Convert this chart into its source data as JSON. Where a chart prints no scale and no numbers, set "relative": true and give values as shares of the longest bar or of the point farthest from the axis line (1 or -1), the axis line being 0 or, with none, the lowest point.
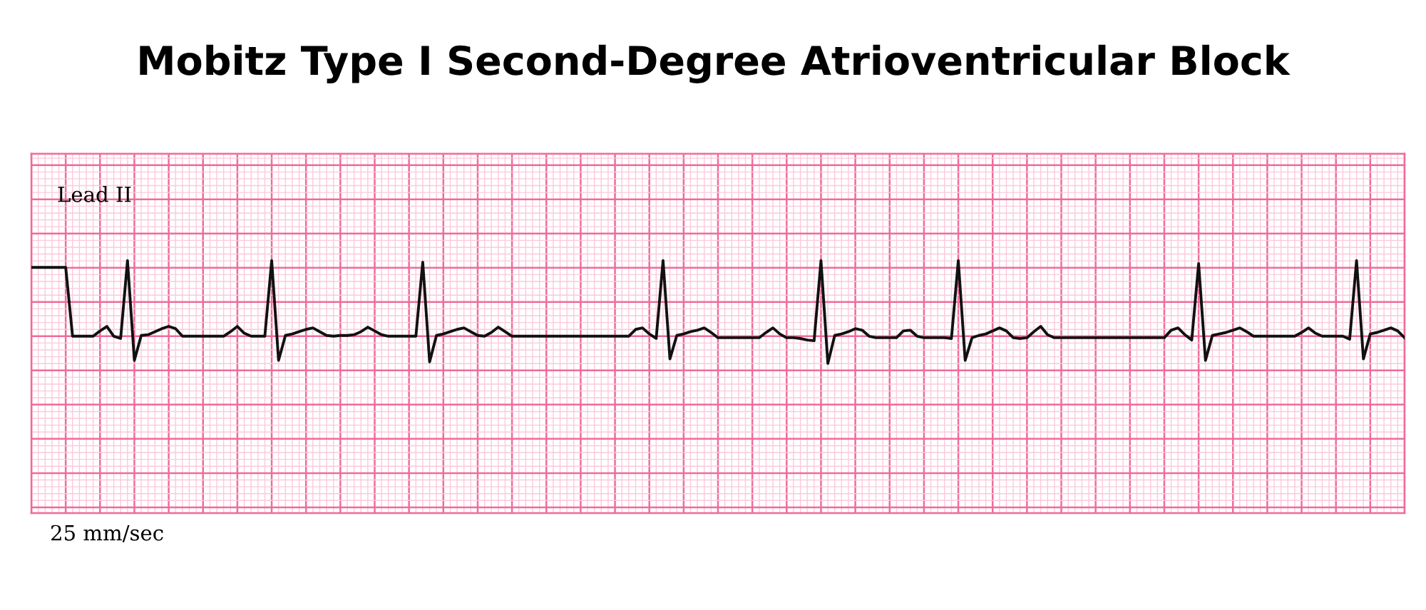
{
  "chart_data": {
    "type": "line",
    "title": "Mobitz Type I Second-Degree Atrioventricular Block",
    "relative": true,
    "grid": true,
    "tick_labels": false,
    "annotations": [
      "Lead II",
      "25 mm/sec"
    ],
    "categories": [
      null,
      null,
      null,
      null,
      null,
      null,
      null,
      null,
      null,
      null,
      null,
      null,
      null,
      null,
      null,
      null,
      null,
      null,
      null,
      null,
      null,
      null,
      null,
      null,
      null,
      null,
      null,
      null,
      null,
      null,
      null,
      null,
      null,
      null,
      null,
      null,
      null,
      null,
      null,
      null,
      null,
      null,
      null,
      null,
      null,
      null,
      null,
      null,
      null,
      null,
      null,
      null,
      null,
      null,
      null,
      null,
      null,
      null,
      null,
      null,
      null,
      null,
      null,
      null,
      null,
      null,
      null,
      null,
      null,
      null,
      null,
      null,
      null,
      null,
      null,
      null,
      null,
      null,
      null,
      null,
      null,
      null,
      null,
      null,
      null,
      null,
      null,
      null,
      null,
      null,
      null,
      null,
      null,
      null,
      null,
      null,
      null,
      null,
      null,
      null,
      null,
      null,
      null,
      null,
      null,
      null,
      null,
      null,
      null,
      null,
      null,
      null,
      null,
      null,
      null,
      null,
      null,
      null,
      null,
      null,
      null,
      null,
      null,
      null,
      null,
      null,
      null,
      null,
      null,
      null,
      null,
      null,
      null,
      null,
      null,
      null,
      null,
      null,
      null,
      null,
      null,
      null,
      null,
      null,
      null,
      null,
      null,
      null,
      null,
      null,
      null,
      null,
      null,
      null,
      null,
      null,
      null,
      null,
      null,
      null,
      null,
      null,
      null,
      null,
      null,
      null,
      null,
      null,
      null,
      null,
      null,
      null,
      null,
      null,
      null,
      null,
      null,
      null,
      null,
      null,
      null,
      null,
      null,
      null,
      null,
      null,
      null,
      null,
      null,
      null,
      null,
      null,
      null,
      null,
      null,
      null,
      null,
      null,
      null,
      null,
      null
    ],
    "series": [
      {
        "color": "#111111",
        "values": [
          0.91,
          0.91,
          0.91,
          0.91,
          0.91,
          0.91,
          0,
          0,
          0,
          0,
          0.07,
          0.13,
          0,
          -0.03,
          1,
          -0.32,
          0.01,
          0.02,
          0.06,
          0.1,
          0.13,
          0.1,
          0,
          0,
          0,
          0,
          0,
          0,
          0,
          0.06,
          0.13,
          0.04,
          0,
          0,
          0,
          1,
          -0.32,
          0.01,
          0.03,
          0.06,
          0.09,
          0.11,
          0.06,
          0.01,
          0,
          0.01,
          0.01,
          0.02,
          0.06,
          0.12,
          0.07,
          0.02,
          0,
          0,
          0,
          0,
          0,
          0.98,
          -0.34,
          0.01,
          0.03,
          0.06,
          0.09,
          0.11,
          0.06,
          0.01,
          0,
          0.05,
          0.12,
          0.06,
          0,
          0,
          0,
          0,
          0,
          0,
          0,
          0,
          0,
          0,
          0,
          0,
          0,
          0,
          0,
          0,
          0,
          0,
          0.09,
          0.11,
          0.03,
          -0.03,
          1,
          -0.3,
          0.01,
          0.03,
          0.06,
          0.08,
          0.11,
          0.05,
          -0.02,
          -0.02,
          -0.02,
          -0.02,
          -0.02,
          -0.02,
          -0.02,
          0.05,
          0.11,
          0.03,
          -0.02,
          -0.02,
          -0.03,
          -0.05,
          -0.06,
          1,
          -0.36,
          0.01,
          0.03,
          0.06,
          0.1,
          0.08,
          0,
          -0.02,
          -0.02,
          -0.02,
          -0.02,
          0.07,
          0.08,
          0,
          -0.02,
          -0.02,
          -0.02,
          -0.02,
          -0.03,
          1,
          -0.32,
          -0.02,
          0.01,
          0.03,
          0.07,
          0.11,
          0.07,
          -0.02,
          -0.03,
          -0.02,
          0.06,
          0.13,
          0.02,
          -0.02,
          -0.02,
          -0.02,
          -0.02,
          -0.02,
          -0.02,
          -0.02,
          -0.02,
          -0.02,
          -0.02,
          -0.02,
          -0.02,
          -0.02,
          -0.02,
          -0.02,
          -0.02,
          -0.02,
          0.08,
          0.11,
          0.02,
          -0.05,
          0.96,
          -0.32,
          0.01,
          0.03,
          0.05,
          0.08,
          0.11,
          0.06,
          0,
          0,
          0,
          0,
          0,
          0,
          0,
          0.05,
          0.11,
          0.04,
          0,
          0,
          0,
          0,
          -0.04,
          1,
          -0.3,
          0.03,
          0.05,
          0.08,
          0.11,
          0.07,
          -0.02
        ]
      }
    ]
  }
}
